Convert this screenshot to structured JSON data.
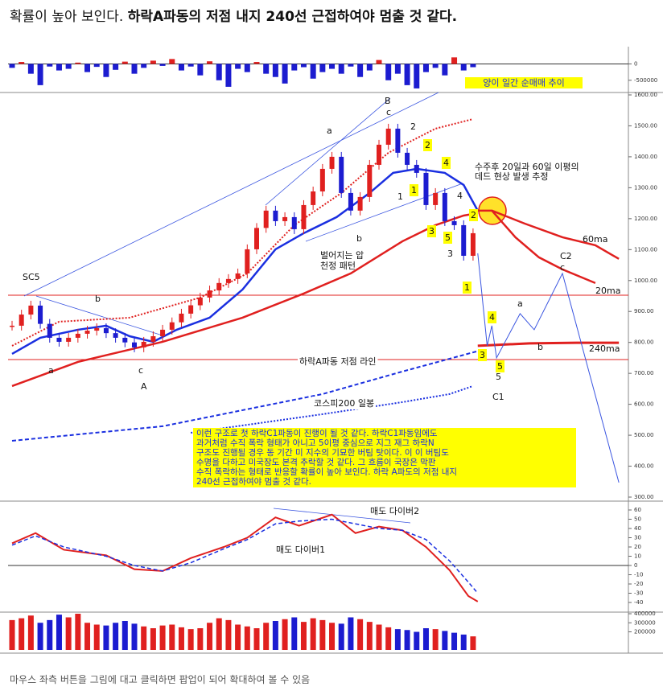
{
  "header": {
    "lead": "확률이 높아 보인다.",
    "emphasis": "하락A파동의 저점 내지 240선 근접하여야 멈출 것 같다."
  },
  "chart_data": [
    {
      "type": "bar",
      "title": "양이 일간 순매매 추이",
      "up_color": "#e0201f",
      "down_color": "#1c1cd0",
      "ylim": [
        -850000,
        430000
      ],
      "yticks": [
        0,
        -500000
      ],
      "values": [
        -120000,
        60000,
        -300000,
        -650000,
        -80000,
        -200000,
        -150000,
        40000,
        -250000,
        -90000,
        -400000,
        -180000,
        70000,
        -300000,
        -120000,
        100000,
        -60000,
        150000,
        -200000,
        -80000,
        -350000,
        80000,
        -500000,
        -700000,
        -150000,
        -250000,
        60000,
        -300000,
        -400000,
        -600000,
        -200000,
        -100000,
        -450000,
        -250000,
        -150000,
        -300000,
        -80000,
        -400000,
        -200000,
        120000,
        -500000,
        -300000,
        -650000,
        -750000,
        -250000,
        -120000,
        -350000,
        200000,
        -200000,
        -100000
      ]
    },
    {
      "type": "candlestick",
      "up_color": "#e0201f",
      "down_color": "#1c1cd0",
      "xlim": [
        0,
        130
      ],
      "ylim": [
        300,
        1600
      ],
      "yticks": [
        {
          "value": 1600,
          "label": "1600.00"
        },
        {
          "value": 1500,
          "label": "1500.00"
        },
        {
          "value": 1400,
          "label": "1400.00"
        },
        {
          "value": 1300,
          "label": "1300.00"
        },
        {
          "value": 1200,
          "label": "1200.00"
        },
        {
          "value": 1100,
          "label": "1100.00"
        },
        {
          "value": 1000,
          "label": "1000.00"
        },
        {
          "value": 900,
          "label": "900.00"
        },
        {
          "value": 800,
          "label": "800.00"
        },
        {
          "value": 700,
          "label": "700.00"
        },
        {
          "value": 600,
          "label": "600.00"
        },
        {
          "value": 500,
          "label": "500.00"
        },
        {
          "value": 400,
          "label": "400.00"
        },
        {
          "value": 300,
          "label": "300.00"
        }
      ],
      "x": [
        0,
        2,
        4,
        6,
        8,
        10,
        12,
        14,
        16,
        18,
        20,
        22,
        24,
        26,
        28,
        30,
        32,
        34,
        36,
        38,
        40,
        42,
        44,
        46,
        48,
        50,
        52,
        54,
        56,
        58,
        60,
        62,
        64,
        66,
        68,
        70,
        72,
        74,
        76,
        78,
        80,
        82,
        84,
        86,
        88,
        90,
        92,
        94,
        96,
        98
      ],
      "close": [
        854,
        890,
        919,
        860,
        815,
        802,
        815,
        828,
        838,
        846,
        830,
        815,
        800,
        784,
        802,
        820,
        841,
        865,
        893,
        920,
        945,
        968,
        992,
        1005,
        1023,
        1101,
        1170,
        1226,
        1192,
        1205,
        1166,
        1244,
        1288,
        1361,
        1400,
        1283,
        1226,
        1270,
        1374,
        1439,
        1491,
        1413,
        1374,
        1348,
        1244,
        1283,
        1192,
        1179,
        1080,
        1153
      ],
      "series": [
        {
          "color": "#1a2fe0",
          "style": "solid",
          "width": 2.5,
          "x": [
            0,
            6,
            14,
            20,
            25,
            30,
            35,
            42,
            49,
            56,
            62,
            69,
            76,
            81,
            86,
            92,
            96,
            99
          ],
          "values": [
            763,
            815,
            841,
            854,
            820,
            802,
            841,
            880,
            971,
            1101,
            1153,
            1205,
            1283,
            1348,
            1361,
            1348,
            1309,
            1226
          ]
        },
        {
          "color": "#e0201f",
          "style": "solid",
          "width": 2.5,
          "x": [
            0,
            14,
            32,
            49,
            62,
            72,
            83,
            90,
            96,
            99
          ],
          "values": [
            659,
            737,
            802,
            880,
            958,
            1023,
            1127,
            1179,
            1210,
            1218
          ]
        },
        {
          "color": "#e0201f",
          "style": "dotted",
          "width": 2,
          "x": [
            0,
            10,
            25,
            40,
            50,
            60,
            70,
            80,
            90,
            98
          ],
          "values": [
            789,
            867,
            880,
            945,
            1023,
            1179,
            1283,
            1413,
            1491,
            1522
          ]
        },
        {
          "color": "#1a2fe0",
          "style": "dashed",
          "width": 2,
          "x": [
            0,
            32,
            66,
            83,
            100
          ],
          "values": [
            482,
            529,
            633,
            706,
            776
          ]
        },
        {
          "color": "#1a2fe0",
          "style": "dotted",
          "width": 2,
          "x": [
            38,
            66,
            83,
            93,
            98
          ],
          "values": [
            508,
            568,
            607,
            633,
            659
          ]
        },
        {
          "color": "#e0201f",
          "style": "solid",
          "width": 2.5,
          "x": [
            99,
            102,
            107,
            112,
            117,
            124
          ],
          "values": [
            1226,
            1226,
            1140,
            1075,
            1036,
            992
          ]
        },
        {
          "color": "#e0201f",
          "style": "solid",
          "width": 2.5,
          "x": [
            102,
            109,
            117,
            124,
            129
          ],
          "values": [
            1226,
            1184,
            1140,
            1114,
            1070
          ]
        },
        {
          "color": "#e0201f",
          "style": "solid",
          "width": 3,
          "x": [
            99,
            110,
            120,
            129
          ],
          "values": [
            789,
            797,
            799,
            799
          ]
        },
        {
          "color": "#3a55e0",
          "style": "solid",
          "width": 1,
          "x": [
            99,
            101,
            102,
            103,
            108,
            111,
            117,
            129
          ],
          "values": [
            1088,
            789,
            854,
            750,
            893,
            841,
            1023,
            347
          ]
        }
      ],
      "annotations": [
        "SC5",
        "b",
        "a",
        "c",
        "A",
        "a",
        "B",
        "c",
        "2",
        "2",
        "4",
        "1",
        "1",
        "4",
        "2",
        "3",
        "5",
        "3",
        "1",
        "b",
        "벌어지는 압",
        "천정 패턴",
        "수주후 20일과 60일 이평의",
        "데드 현상 발생 추정",
        "60ma",
        "20ma",
        "240ma",
        "C2",
        "c",
        "a",
        "b",
        "4",
        "3",
        "5",
        "5",
        "C1",
        "하락A파동 저점 라인",
        "코스피200 일봉"
      ],
      "note": [
        "이런 구조로 첫 하락C1파동이 진행이 될 것 같다. 하락C1파동임에도",
        "과거처럼 수직 폭락 형태가 아니고 5이평 중심으로 지그 재그 하락N",
        "구조도 진행될 경우 동 기간 미 지수의 기묘한 버팀 탓이다. 이 이 버팀도",
        "수명을 다하고 미국장도 본격 추락할 것 같다. 그 흐름이 국장은 막판",
        "수직 폭락하는 형태로 반응할 확률이 높아 보인다. 하락 A파도의 저점 내지",
        "240선 근접하여야 멈출 것 같다."
      ]
    },
    {
      "type": "line",
      "xlim": [
        0,
        130
      ],
      "ylim": [
        -40,
        60
      ],
      "yticks": [
        60,
        50,
        40,
        30,
        20,
        10,
        0,
        -10,
        -20,
        -30,
        -40
      ],
      "series": [
        {
          "color": "#e0201f",
          "style": "solid",
          "width": 2,
          "x": [
            0,
            5,
            11,
            20,
            26,
            32,
            38,
            45,
            50,
            56,
            61,
            68,
            73,
            78,
            83,
            88,
            93,
            97,
            99
          ],
          "values": [
            24,
            35,
            17,
            11,
            -4,
            -6,
            8,
            20,
            30,
            52,
            43,
            55,
            35,
            42,
            38,
            20,
            -5,
            -33,
            -39
          ]
        },
        {
          "color": "#1a2fe0",
          "style": "dashed",
          "width": 1.5,
          "x": [
            0,
            5,
            11,
            20,
            26,
            32,
            38,
            45,
            50,
            56,
            61,
            68,
            73,
            78,
            83,
            88,
            93,
            97,
            99
          ],
          "values": [
            22,
            32,
            20,
            10,
            0,
            -6,
            3,
            18,
            28,
            45,
            48,
            50,
            45,
            40,
            38,
            28,
            5,
            -18,
            -30
          ]
        }
      ],
      "annotations": [
        "매도 다이버2",
        "매도 다이버1"
      ]
    },
    {
      "type": "bar",
      "ylim": [
        0,
        400000
      ],
      "yticks": [
        400000,
        300000,
        200000
      ],
      "values": [
        330000,
        350000,
        380000,
        300000,
        330000,
        390000,
        360000,
        400000,
        300000,
        280000,
        270000,
        300000,
        320000,
        290000,
        260000,
        240000,
        270000,
        280000,
        250000,
        230000,
        240000,
        300000,
        350000,
        330000,
        280000,
        260000,
        240000,
        300000,
        320000,
        340000,
        360000,
        310000,
        350000,
        330000,
        300000,
        290000,
        360000,
        340000,
        310000,
        280000,
        250000,
        230000,
        220000,
        200000,
        240000,
        230000,
        210000,
        190000,
        170000,
        150000
      ]
    }
  ],
  "footer": "마우스 좌측 버튼을 그림에 대고 클릭하면 팝업이 되어 확대하여 볼 수 있음"
}
